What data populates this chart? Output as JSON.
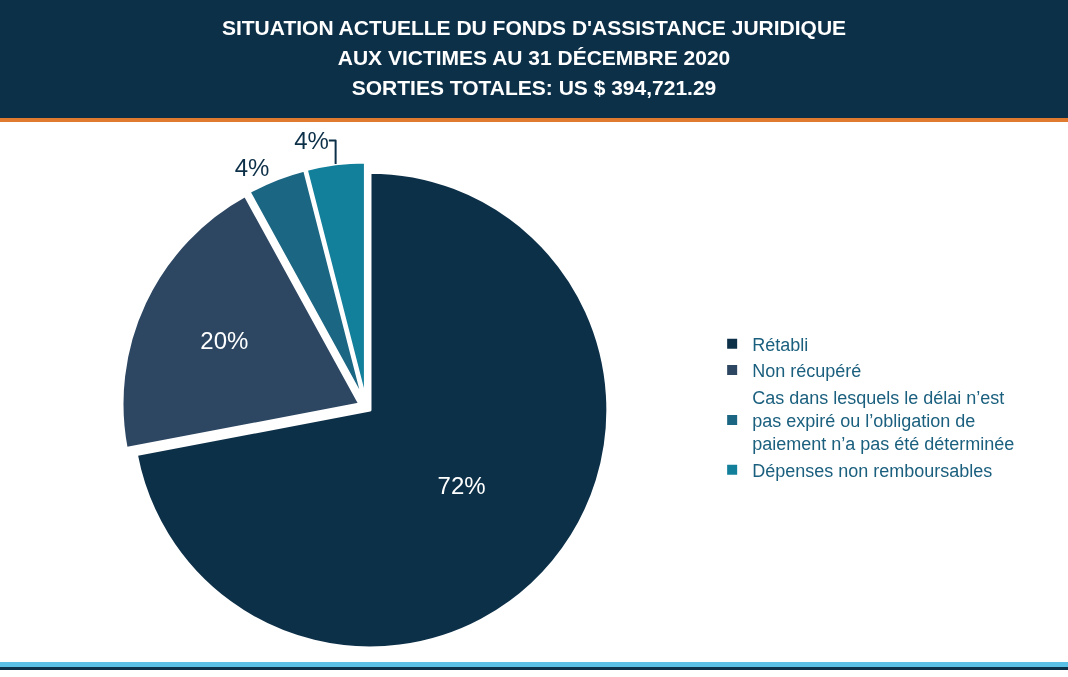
{
  "chart_data": {
    "type": "pie",
    "title": "SITUATION ACTUELLE DU FONDS D'ASSISTANCE JURIDIQUE AUX VICTIMES AU 31 DÉCEMBRE 2020",
    "subtitle": "SORTIES TOTALES: US $ 394,721.29",
    "categories": [
      "Rétabli",
      "Non récupéré",
      "Cas dans lesquels le délai n’est pas expiré ou l’obligation de paiement n’a pas été déterminée",
      "Dépenses non remboursables"
    ],
    "values": [
      72,
      20,
      4,
      4
    ],
    "value_labels": [
      "72%",
      "20%",
      "4%",
      "4%"
    ],
    "colors": [
      "#0d3049",
      "#2d4763",
      "#1a6683",
      "#127f9b"
    ],
    "legend": "right"
  }
}
